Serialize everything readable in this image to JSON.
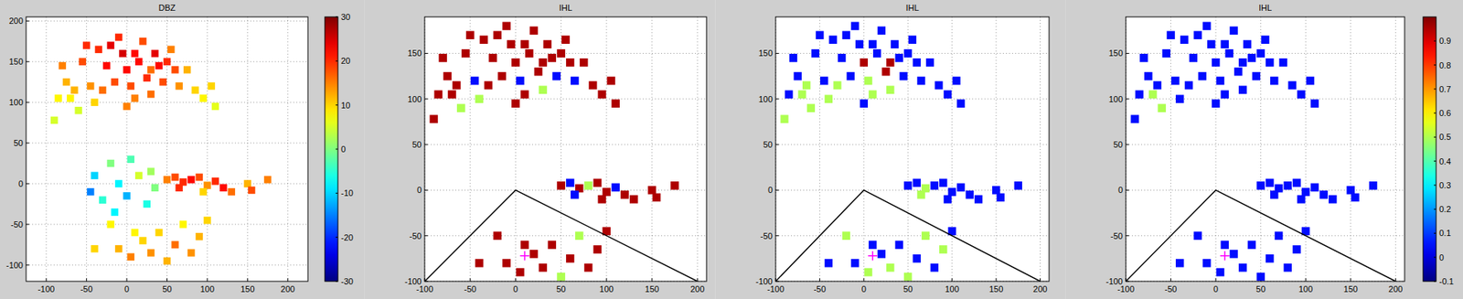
{
  "chart_data": [
    {
      "type": "heatmap",
      "title": "DBZ",
      "xlim": [
        -125,
        225
      ],
      "ylim": [
        -120,
        205
      ],
      "xticks": [
        -100,
        -50,
        0,
        50,
        100,
        150,
        200
      ],
      "yticks": [
        -100,
        -50,
        0,
        50,
        100,
        150,
        200
      ],
      "grid": true,
      "x": [
        -80,
        -75,
        -70,
        -60,
        -55,
        -50,
        -45,
        -40,
        -30,
        -25,
        -20,
        -10,
        -5,
        0,
        5,
        10,
        15,
        20,
        25,
        30,
        35,
        40,
        45,
        50,
        55,
        60,
        65,
        75,
        85,
        95,
        105,
        110,
        -65,
        -85,
        -90,
        0,
        -15,
        -35,
        10,
        30,
        50,
        60,
        70,
        80,
        90,
        100,
        110,
        120,
        130,
        150,
        155,
        175,
        65,
        95,
        -20,
        -10,
        5,
        20,
        30,
        40,
        50,
        60,
        70,
        80,
        90,
        100,
        -40,
        10,
        -40,
        -30,
        -20,
        -10,
        0,
        5,
        15,
        25,
        -45,
        30,
        -15,
        35
      ],
      "y": [
        145,
        125,
        105,
        90,
        150,
        170,
        120,
        100,
        115,
        145,
        170,
        180,
        160,
        140,
        120,
        105,
        150,
        175,
        130,
        110,
        160,
        145,
        125,
        150,
        165,
        140,
        120,
        140,
        115,
        105,
        120,
        95,
        115,
        105,
        78,
        95,
        125,
        165,
        160,
        140,
        5,
        8,
        2,
        5,
        8,
        -2,
        3,
        -5,
        -10,
        0,
        -8,
        5,
        -5,
        -10,
        -50,
        -80,
        -90,
        -70,
        -85,
        -60,
        -95,
        -75,
        -50,
        -85,
        -65,
        -45,
        -80,
        -60,
        10,
        -20,
        25,
        0,
        -15,
        30,
        10,
        -25,
        -10,
        15,
        -35,
        -5
      ],
      "values": [
        15,
        12,
        8,
        5,
        18,
        20,
        14,
        10,
        16,
        22,
        24,
        20,
        25,
        22,
        18,
        15,
        22,
        18,
        20,
        16,
        24,
        22,
        18,
        20,
        15,
        18,
        14,
        12,
        10,
        8,
        10,
        6,
        12,
        8,
        5,
        15,
        18,
        20,
        22,
        16,
        15,
        18,
        20,
        22,
        18,
        14,
        20,
        22,
        16,
        12,
        18,
        15,
        20,
        10,
        8,
        12,
        15,
        10,
        14,
        10,
        12,
        16,
        8,
        14,
        12,
        10,
        10,
        8,
        -10,
        -5,
        0,
        -8,
        -12,
        -3,
        5,
        -6,
        -15,
        2,
        -8,
        0
      ],
      "color_range": [
        -30,
        30
      ],
      "color_ticks": [
        -30,
        -20,
        -10,
        0,
        10,
        20,
        30
      ]
    },
    {
      "type": "heatmap",
      "title": "IHL",
      "xlim": [
        -100,
        210
      ],
      "ylim": [
        -100,
        190
      ],
      "xticks": [
        -100,
        -50,
        0,
        50,
        100,
        150,
        200
      ],
      "yticks": [
        -100,
        -50,
        0,
        50,
        100,
        150
      ],
      "grid": true,
      "x": [
        -80,
        -75,
        -70,
        -60,
        -55,
        -50,
        -45,
        -40,
        -30,
        -25,
        -20,
        -10,
        -5,
        0,
        5,
        10,
        15,
        20,
        25,
        30,
        35,
        40,
        45,
        50,
        55,
        60,
        65,
        75,
        85,
        95,
        105,
        110,
        -65,
        -85,
        -90,
        0,
        -15,
        -35,
        10,
        30,
        50,
        60,
        70,
        80,
        90,
        100,
        110,
        120,
        130,
        150,
        155,
        175,
        65,
        95,
        -20,
        -10,
        5,
        20,
        30,
        40,
        50,
        60,
        70,
        80,
        90,
        100,
        -40,
        10
      ],
      "y": [
        145,
        125,
        105,
        90,
        150,
        170,
        120,
        100,
        115,
        145,
        170,
        180,
        160,
        140,
        120,
        105,
        150,
        175,
        130,
        110,
        160,
        145,
        125,
        150,
        165,
        140,
        120,
        140,
        115,
        105,
        120,
        95,
        115,
        105,
        78,
        95,
        125,
        165,
        160,
        140,
        5,
        8,
        2,
        5,
        8,
        -2,
        3,
        -5,
        -10,
        0,
        -8,
        5,
        -5,
        -10,
        -50,
        -80,
        -90,
        -70,
        -85,
        -60,
        -95,
        -75,
        -50,
        -85,
        -65,
        -45,
        -80,
        -60
      ],
      "values": [
        0.95,
        0.95,
        0.95,
        0.5,
        0.95,
        0.95,
        0.05,
        0.5,
        0.95,
        0.95,
        0.95,
        0.95,
        0.95,
        0.95,
        0.05,
        0.95,
        0.95,
        0.95,
        0.95,
        0.5,
        0.95,
        0.95,
        0.05,
        0.95,
        0.95,
        0.95,
        0.05,
        0.95,
        0.95,
        0.95,
        0.95,
        0.95,
        0.95,
        0.95,
        0.95,
        0.95,
        0.95,
        0.95,
        0.95,
        0.95,
        0.95,
        0.05,
        0.95,
        0.5,
        0.95,
        0.95,
        0.05,
        0.95,
        0.95,
        0.95,
        0.95,
        0.95,
        0.05,
        0.95,
        0.95,
        0.95,
        0.95,
        0.95,
        0.95,
        0.95,
        0.5,
        0.95,
        0.5,
        0.95,
        0.95,
        0.95,
        0.95,
        0.95
      ],
      "color_range": [
        -0.1,
        1.0
      ],
      "lines": {
        "x": [
          -100,
          0,
          200
        ],
        "y": [
          -100,
          0,
          -100
        ]
      },
      "point": {
        "x": 10,
        "y": -72
      }
    },
    {
      "type": "heatmap",
      "title": "IHL",
      "xlim": [
        -100,
        210
      ],
      "ylim": [
        -100,
        190
      ],
      "xticks": [
        -100,
        -50,
        0,
        50,
        100,
        150,
        200
      ],
      "yticks": [
        -100,
        -50,
        0,
        50,
        100,
        150
      ],
      "grid": true,
      "x": [
        -80,
        -75,
        -70,
        -60,
        -55,
        -50,
        -45,
        -40,
        -30,
        -25,
        -20,
        -10,
        -5,
        0,
        5,
        10,
        15,
        20,
        25,
        30,
        35,
        40,
        45,
        50,
        55,
        60,
        65,
        75,
        85,
        95,
        105,
        110,
        -65,
        -85,
        -90,
        0,
        -15,
        -35,
        10,
        30,
        50,
        60,
        70,
        80,
        90,
        100,
        110,
        120,
        130,
        150,
        155,
        175,
        65,
        95,
        -20,
        -10,
        5,
        20,
        30,
        40,
        50,
        60,
        70,
        80,
        90,
        100,
        -40,
        10
      ],
      "y": [
        145,
        125,
        105,
        90,
        150,
        170,
        120,
        100,
        115,
        145,
        170,
        180,
        160,
        140,
        120,
        105,
        150,
        175,
        130,
        110,
        160,
        145,
        125,
        150,
        165,
        140,
        120,
        140,
        115,
        105,
        120,
        95,
        115,
        105,
        78,
        95,
        125,
        165,
        160,
        140,
        5,
        8,
        2,
        5,
        8,
        -2,
        3,
        -5,
        -10,
        0,
        -8,
        5,
        -5,
        -10,
        -50,
        -80,
        -90,
        -70,
        -85,
        -60,
        -95,
        -75,
        -50,
        -85,
        -65,
        -45,
        -80,
        -60
      ],
      "values": [
        0.05,
        0.05,
        0.5,
        0.5,
        0.05,
        0.05,
        0.05,
        0.5,
        0.5,
        0.05,
        0.05,
        0.05,
        0.05,
        0.95,
        0.5,
        0.5,
        0.05,
        0.05,
        0.95,
        0.5,
        0.05,
        0.05,
        0.05,
        0.05,
        0.05,
        0.05,
        0.05,
        0.05,
        0.05,
        0.05,
        0.05,
        0.05,
        0.5,
        0.05,
        0.5,
        0.05,
        0.05,
        0.05,
        0.05,
        0.95,
        0.05,
        0.05,
        0.5,
        0.05,
        0.05,
        0.05,
        0.05,
        0.05,
        0.05,
        0.05,
        0.05,
        0.05,
        0.5,
        0.05,
        0.5,
        0.05,
        0.5,
        0.05,
        0.5,
        0.05,
        0.5,
        0.05,
        0.5,
        0.05,
        0.5,
        0.05,
        0.05,
        0.05
      ],
      "color_range": [
        -0.1,
        1.0
      ],
      "lines": {
        "x": [
          -100,
          0,
          200
        ],
        "y": [
          -100,
          0,
          -100
        ]
      },
      "point": {
        "x": 10,
        "y": -72
      }
    },
    {
      "type": "heatmap",
      "title": "IHL",
      "xlim": [
        -100,
        210
      ],
      "ylim": [
        -100,
        190
      ],
      "xticks": [
        -100,
        -50,
        0,
        50,
        100,
        150,
        200
      ],
      "yticks": [
        -100,
        -50,
        0,
        50,
        100,
        150
      ],
      "grid": true,
      "x": [
        -80,
        -75,
        -70,
        -60,
        -55,
        -50,
        -45,
        -40,
        -30,
        -25,
        -20,
        -10,
        -5,
        0,
        5,
        10,
        15,
        20,
        25,
        30,
        35,
        40,
        45,
        50,
        55,
        60,
        65,
        75,
        85,
        95,
        105,
        110,
        -65,
        -85,
        -90,
        0,
        -15,
        -35,
        10,
        30,
        50,
        60,
        70,
        80,
        90,
        100,
        110,
        120,
        130,
        150,
        155,
        175,
        65,
        95,
        -20,
        -10,
        5,
        20,
        30,
        40,
        50,
        60,
        70,
        80,
        90,
        100,
        -40,
        10
      ],
      "y": [
        145,
        125,
        105,
        90,
        150,
        170,
        120,
        100,
        115,
        145,
        170,
        180,
        160,
        140,
        120,
        105,
        150,
        175,
        130,
        110,
        160,
        145,
        125,
        150,
        165,
        140,
        120,
        140,
        115,
        105,
        120,
        95,
        115,
        105,
        78,
        95,
        125,
        165,
        160,
        140,
        5,
        8,
        2,
        5,
        8,
        -2,
        3,
        -5,
        -10,
        0,
        -8,
        5,
        -5,
        -10,
        -50,
        -80,
        -90,
        -70,
        -85,
        -60,
        -95,
        -75,
        -50,
        -85,
        -65,
        -45,
        -80,
        -60
      ],
      "values": [
        0.05,
        0.05,
        0.5,
        0.5,
        0.05,
        0.05,
        0.05,
        0.05,
        0.05,
        0.05,
        0.05,
        0.05,
        0.05,
        0.05,
        0.05,
        0.05,
        0.05,
        0.05,
        0.05,
        0.05,
        0.05,
        0.05,
        0.05,
        0.05,
        0.05,
        0.05,
        0.05,
        0.05,
        0.05,
        0.05,
        0.05,
        0.05,
        0.05,
        0.05,
        0.05,
        0.05,
        0.05,
        0.05,
        0.05,
        0.05,
        0.05,
        0.05,
        0.05,
        0.05,
        0.05,
        0.05,
        0.05,
        0.05,
        0.05,
        0.05,
        0.05,
        0.05,
        0.05,
        0.05,
        0.05,
        0.05,
        0.05,
        0.05,
        0.05,
        0.05,
        0.05,
        0.05,
        0.05,
        0.05,
        0.05,
        0.05,
        0.05,
        0.05
      ],
      "color_range": [
        -0.1,
        1.0
      ],
      "color_ticks": [
        -0.1,
        0,
        0.1,
        0.2,
        0.3,
        0.4,
        0.5,
        0.6,
        0.7,
        0.8,
        0.9
      ],
      "lines": {
        "x": [
          -100,
          0,
          200
        ],
        "y": [
          -100,
          0,
          -100
        ]
      },
      "point": {
        "x": 10,
        "y": -72
      }
    }
  ]
}
